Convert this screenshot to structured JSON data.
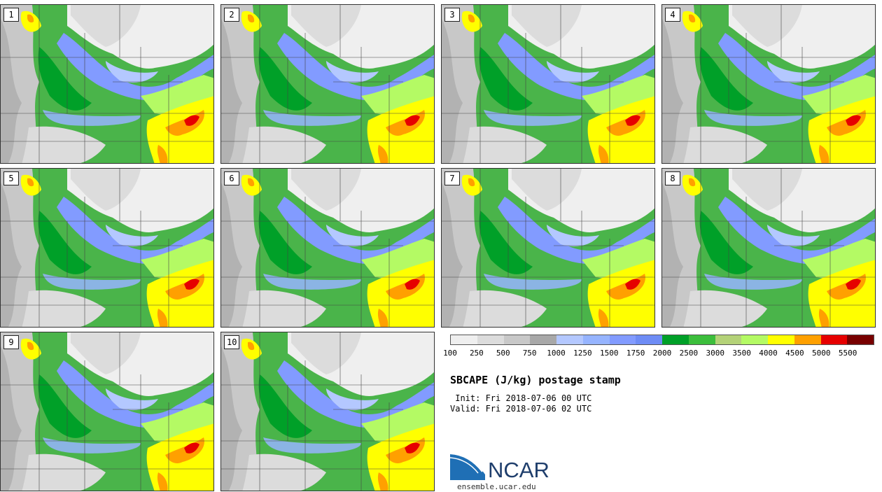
{
  "panels": [
    {
      "label": "1"
    },
    {
      "label": "2"
    },
    {
      "label": "3"
    },
    {
      "label": "4"
    },
    {
      "label": "5"
    },
    {
      "label": "6"
    },
    {
      "label": "7"
    },
    {
      "label": "8"
    },
    {
      "label": "9"
    },
    {
      "label": "10"
    }
  ],
  "legend": {
    "colors": [
      "#efefef",
      "#dcdcdc",
      "#c8c8c8",
      "#a8a8a8",
      "#b4c8ff",
      "#96b4ff",
      "#829bff",
      "#6e8cf5",
      "#00a028",
      "#3cbe3c",
      "#b4d278",
      "#b4fa64",
      "#ffff00",
      "#ffa000",
      "#e60000",
      "#780000"
    ],
    "labels": [
      "100",
      "250",
      "500",
      "750",
      "1000",
      "1250",
      "1500",
      "1750",
      "2000",
      "2500",
      "3000",
      "3500",
      "4000",
      "4500",
      "5000",
      "5500"
    ]
  },
  "title": "SBCAPE (J/kg) postage stamp",
  "init": " Init: Fri 2018-07-06 00 UTC",
  "valid": "Valid: Fri 2018-07-06 02 UTC",
  "logo": {
    "text": "NCAR",
    "site": "ensemble.ucar.edu"
  }
}
